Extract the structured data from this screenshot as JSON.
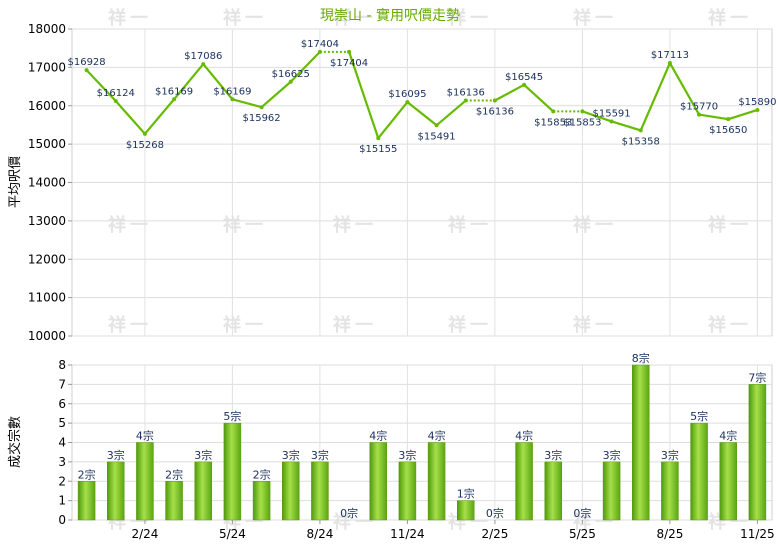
{
  "chart_data": [
    {
      "type": "line",
      "title": "現崇山 - 實用呎價走勢",
      "ylabel": "平均呎價",
      "ylim": [
        10000,
        18000
      ],
      "yticks": [
        "10000",
        "11000",
        "12000",
        "13000",
        "14000",
        "15000",
        "16000",
        "17000",
        "18000"
      ],
      "grid": true,
      "color": "#66bb00",
      "points": [
        {
          "m": 0,
          "v": 16928,
          "label": "$16928"
        },
        {
          "m": 1,
          "v": 16124,
          "label": "$16124"
        },
        {
          "m": 2,
          "v": 15268,
          "label": "$15268"
        },
        {
          "m": 3,
          "v": 16169,
          "label": "$16169"
        },
        {
          "m": 4,
          "v": 17086,
          "label": "$17086"
        },
        {
          "m": 5,
          "v": 16169,
          "label": "$16169"
        },
        {
          "m": 6,
          "v": 15962,
          "label": "$15962"
        },
        {
          "m": 7,
          "v": 16625,
          "label": "$16625"
        },
        {
          "m": 8,
          "v": 17404,
          "label": "$17404"
        },
        {
          "m": 9,
          "v": 17404,
          "label": "$17404",
          "dashed": true
        },
        {
          "m": 10,
          "v": 15155,
          "label": "$15155"
        },
        {
          "m": 11,
          "v": 16095,
          "label": "$16095"
        },
        {
          "m": 12,
          "v": 15491,
          "label": "$15491"
        },
        {
          "m": 13,
          "v": 16136,
          "label": "$16136"
        },
        {
          "m": 14,
          "v": 16136,
          "label": "$16136",
          "dashed": true
        },
        {
          "m": 15,
          "v": 16545,
          "label": "$16545"
        },
        {
          "m": 16,
          "v": 15853,
          "label": "$15853"
        },
        {
          "m": 17,
          "v": 15853,
          "label": "$15853",
          "dashed": true
        },
        {
          "m": 18,
          "v": 15591,
          "label": "$15591"
        },
        {
          "m": 19,
          "v": 15358,
          "label": "$15358"
        },
        {
          "m": 20,
          "v": 17113,
          "label": "$17113"
        },
        {
          "m": 21,
          "v": 15770,
          "label": "$15770"
        },
        {
          "m": 22,
          "v": 15650,
          "label": "$15650"
        },
        {
          "m": 23,
          "v": 15890,
          "label": "$15890"
        }
      ]
    },
    {
      "type": "bar",
      "ylabel": "成交宗數",
      "ylim": [
        0,
        8
      ],
      "yticks": [
        "0",
        "1",
        "2",
        "3",
        "4",
        "5",
        "6",
        "7",
        "8"
      ],
      "grid": true,
      "xticks": [
        {
          "m": 2,
          "label": "2/24"
        },
        {
          "m": 5,
          "label": "5/24"
        },
        {
          "m": 8,
          "label": "8/24"
        },
        {
          "m": 11,
          "label": "11/24"
        },
        {
          "m": 14,
          "label": "2/25"
        },
        {
          "m": 17,
          "label": "5/25"
        },
        {
          "m": 20,
          "label": "8/25"
        },
        {
          "m": 23,
          "label": "11/25"
        }
      ],
      "values": [
        2,
        3,
        4,
        2,
        3,
        5,
        2,
        3,
        3,
        0,
        4,
        3,
        4,
        1,
        0,
        4,
        3,
        0,
        3,
        8,
        3,
        5,
        4,
        7
      ],
      "labels": [
        "2宗",
        "3宗",
        "4宗",
        "2宗",
        "3宗",
        "5宗",
        "2宗",
        "3宗",
        "3宗",
        "0宗",
        "4宗",
        "3宗",
        "4宗",
        "1宗",
        "0宗",
        "4宗",
        "3宗",
        "0宗",
        "3宗",
        "8宗",
        "3宗",
        "5宗",
        "4宗",
        "7宗"
      ],
      "bar_color": "#77c21c"
    }
  ],
  "watermark": "祥一"
}
